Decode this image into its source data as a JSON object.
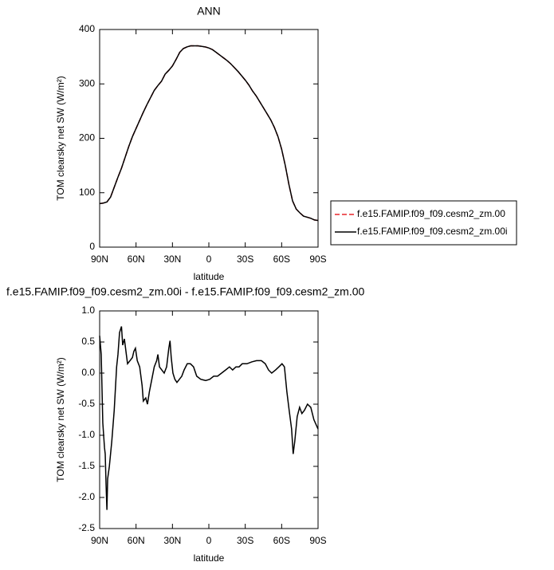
{
  "chart_data": [
    {
      "type": "line",
      "title": "ANN",
      "x_label": "latitude",
      "y_label": "TOM clearsky net SW (W/m²)",
      "x": [
        90,
        87,
        84,
        81,
        78,
        75,
        72,
        69,
        66,
        63,
        60,
        57,
        54,
        51,
        48,
        45,
        42,
        39,
        36,
        33,
        30,
        27,
        24,
        21,
        18,
        15,
        12,
        9,
        6,
        3,
        0,
        -3,
        -6,
        -9,
        -12,
        -15,
        -18,
        -21,
        -24,
        -27,
        -30,
        -33,
        -36,
        -39,
        -42,
        -45,
        -48,
        -51,
        -54,
        -57,
        -60,
        -63,
        -66,
        -69,
        -72,
        -75,
        -78,
        -81,
        -84,
        -87,
        -90
      ],
      "series": [
        {
          "name": "f.e15.FAMIP.f09_f09.cesm2_zm.00",
          "color": "#e8262b",
          "linestyle": "dashed",
          "values": [
            80,
            81,
            83,
            92,
            110,
            128,
            145,
            165,
            185,
            203,
            218,
            233,
            248,
            262,
            275,
            288,
            297,
            305,
            318,
            325,
            333,
            345,
            358,
            365,
            368,
            370,
            370,
            370,
            369,
            368,
            366,
            363,
            358,
            353,
            348,
            343,
            337,
            330,
            323,
            315,
            307,
            298,
            287,
            278,
            267,
            256,
            245,
            234,
            220,
            203,
            180,
            150,
            115,
            85,
            70,
            63,
            57,
            55,
            53,
            50,
            49
          ]
        },
        {
          "name": "f.e15.FAMIP.f09_f09.cesm2_zm.00i",
          "color": "#000000",
          "linestyle": "solid",
          "values": [
            80,
            81,
            83,
            92,
            110,
            128,
            145,
            165,
            185,
            203,
            218,
            233,
            248,
            262,
            275,
            288,
            297,
            305,
            318,
            325,
            333,
            345,
            358,
            365,
            368,
            370,
            370,
            370,
            369,
            368,
            366,
            363,
            358,
            353,
            348,
            343,
            337,
            330,
            323,
            315,
            307,
            298,
            287,
            278,
            267,
            256,
            245,
            234,
            220,
            203,
            180,
            150,
            115,
            85,
            70,
            63,
            57,
            55,
            53,
            50,
            49
          ]
        }
      ],
      "xlim": [
        90,
        -90
      ],
      "xticks": [
        {
          "value": 90,
          "label": "90N"
        },
        {
          "value": 60,
          "label": "60N"
        },
        {
          "value": 30,
          "label": "30N"
        },
        0,
        {
          "value": -30,
          "label": "30S"
        },
        {
          "value": -60,
          "label": "60S"
        },
        {
          "value": -90,
          "label": "90S"
        }
      ],
      "ylim": [
        0,
        400
      ],
      "yticks": [
        0,
        100,
        200,
        300,
        400
      ],
      "legend": "right"
    },
    {
      "type": "line",
      "title": "f.e15.FAMIP.f09_f09.cesm2_zm.00i - f.e15.FAMIP.f09_f09.cesm2_zm.00",
      "x_label": "latitude",
      "y_label": "TOM clearsky net SW (W/m²)",
      "x": [
        90,
        88.7,
        87.4,
        86,
        85.4,
        84.7,
        84,
        83.4,
        82,
        80,
        78,
        76,
        74.9,
        73.6,
        72,
        71,
        69.6,
        68,
        67,
        65,
        63,
        61.8,
        60.5,
        59,
        57,
        55,
        54,
        52,
        50.6,
        49,
        47,
        45,
        43,
        42,
        40.7,
        38.8,
        36.8,
        34.8,
        33,
        32,
        31,
        29.6,
        28,
        26.3,
        24.3,
        22.3,
        20.4,
        17.8,
        15.2,
        12.6,
        10,
        6.6,
        2.6,
        -0.7,
        -4,
        -7.2,
        -10.5,
        -13.8,
        -17,
        -19.6,
        -22.3,
        -24.9,
        -27.5,
        -31.4,
        -35.4,
        -39.3,
        -43.3,
        -46.5,
        -49.2,
        -51.8,
        -55,
        -57.7,
        -60.3,
        -62.3,
        -64.3,
        -66.2,
        -68.2,
        -69.5,
        -70.8,
        -72.8,
        -74.8,
        -76.7,
        -78.7,
        -81.3,
        -84,
        -86.6,
        -90
      ],
      "values": [
        0.6,
        0.3,
        -0.8,
        -1.2,
        -1.3,
        -1.8,
        -2.2,
        -1.7,
        -1.5,
        -1.1,
        -0.6,
        0.1,
        0.3,
        0.65,
        0.75,
        0.45,
        0.55,
        0.3,
        0.15,
        0.2,
        0.25,
        0.35,
        0.4,
        0.2,
        0.1,
        -0.2,
        -0.45,
        -0.4,
        -0.5,
        -0.3,
        -0.1,
        0.1,
        0.2,
        0.3,
        0.1,
        0.05,
        0.0,
        0.1,
        0.4,
        0.52,
        0.25,
        0.0,
        -0.1,
        -0.15,
        -0.1,
        -0.05,
        0.05,
        0.15,
        0.15,
        0.1,
        -0.05,
        -0.1,
        -0.12,
        -0.1,
        -0.05,
        -0.05,
        0.0,
        0.05,
        0.1,
        0.05,
        0.1,
        0.1,
        0.15,
        0.15,
        0.18,
        0.2,
        0.2,
        0.15,
        0.05,
        0.0,
        0.05,
        0.1,
        0.15,
        0.1,
        -0.3,
        -0.6,
        -0.9,
        -1.3,
        -1.1,
        -0.7,
        -0.55,
        -0.65,
        -0.6,
        -0.5,
        -0.55,
        -0.75,
        -0.9
      ],
      "color": "#000000",
      "xlim": [
        90,
        -90
      ],
      "xticks": [
        {
          "value": 90,
          "label": "90N"
        },
        {
          "value": 60,
          "label": "60N"
        },
        {
          "value": 30,
          "label": "30N"
        },
        0,
        {
          "value": -30,
          "label": "30S"
        },
        {
          "value": -60,
          "label": "60S"
        },
        {
          "value": -90,
          "label": "90S"
        }
      ],
      "ylim": [
        -2.5,
        1.0
      ],
      "yticks": [
        {
          "value": 1.0,
          "label": "1.0"
        },
        0.5,
        {
          "value": 0.0,
          "label": "0.0"
        },
        -0.5,
        {
          "value": -1.0,
          "label": "-1.0"
        },
        -1.5,
        {
          "value": -2.0,
          "label": "-2.0"
        },
        -2.5
      ]
    }
  ]
}
